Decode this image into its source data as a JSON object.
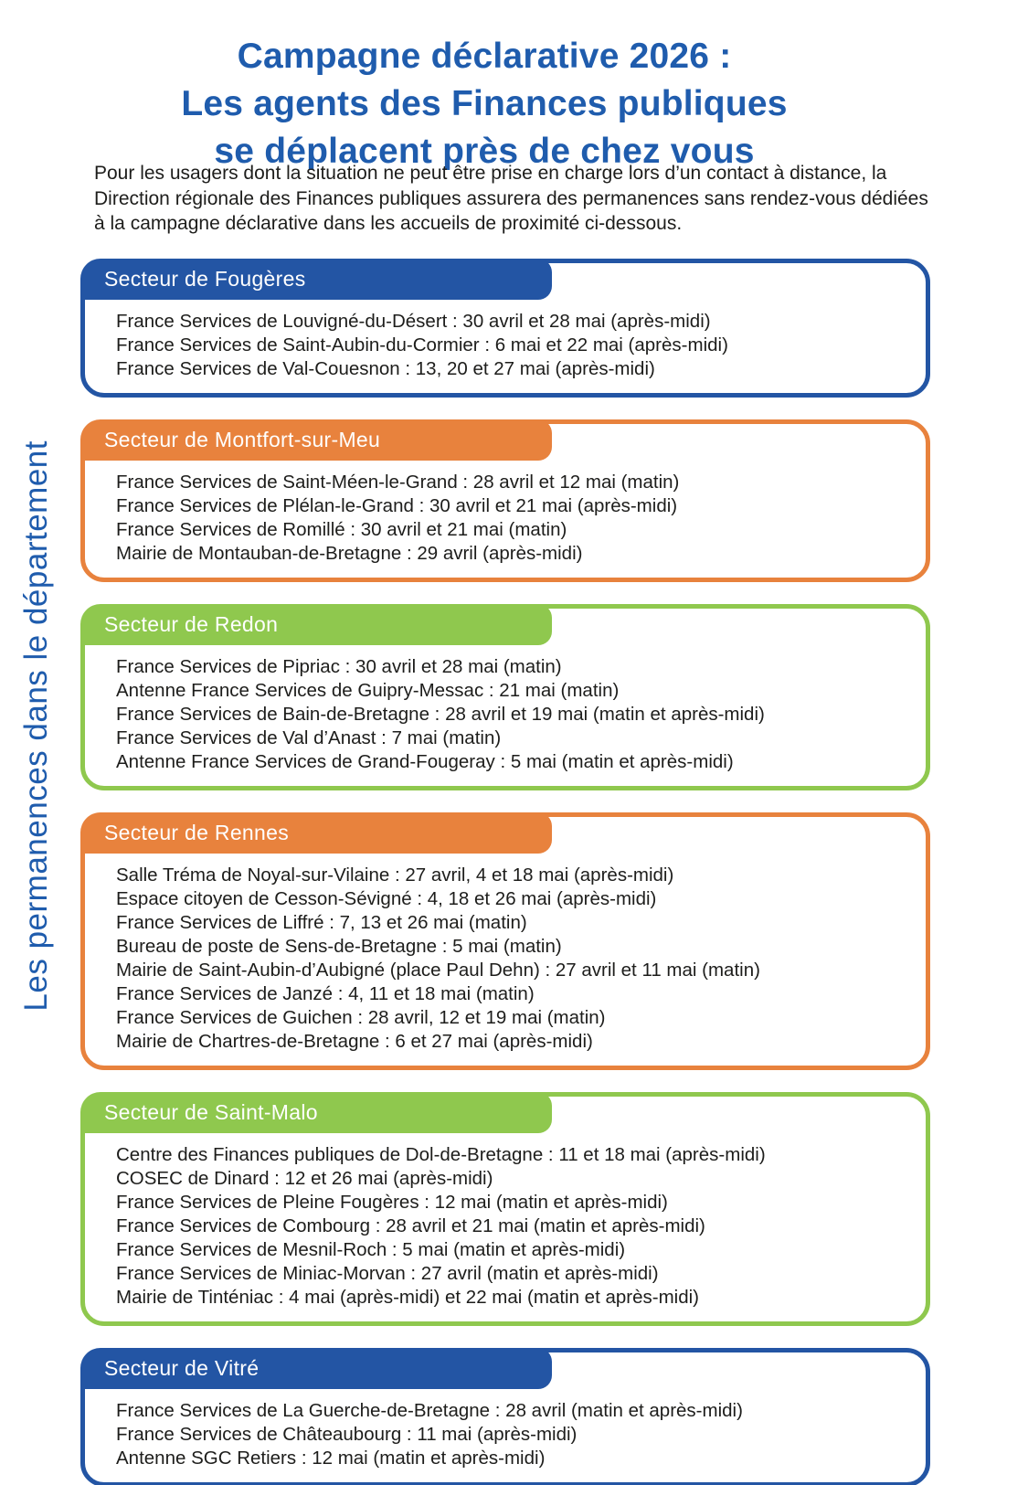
{
  "page": {
    "title_lines": [
      "Campagne déclarative 2026 :",
      "Les agents des Finances publiques",
      "se déplacent près de chez vous"
    ],
    "intro": "Pour les usagers dont la situation ne peut être prise en charge lors d’un contact à distance, la Direction régionale des Finances publiques assurera des permanences sans rendez-vous dédiées à la campagne déclarative dans les accueils de proximité ci-dessous.",
    "side_label": "Les permanences dans le département"
  },
  "colors": {
    "blue": "#2355a4",
    "orange": "#e8823d",
    "green": "#8fc84e",
    "heading_blue": "#1f5cad",
    "body_text": "#1d1d1b"
  },
  "sectors": [
    {
      "name": "Secteur de Fougères",
      "color": "blue",
      "entries": [
        "France Services de Louvigné-du-Désert : 30 avril et 28 mai (après-midi)",
        "France Services de Saint-Aubin-du-Cormier : 6 mai et 22 mai (après-midi)",
        "France Services de Val-Couesnon : 13, 20 et 27 mai (après-midi)"
      ]
    },
    {
      "name": "Secteur de Montfort-sur-Meu",
      "color": "orange",
      "entries": [
        "France Services de Saint-Méen-le-Grand : 28 avril et 12 mai (matin)",
        "France Services de Plélan-le-Grand : 30 avril et 21 mai (après-midi)",
        "France Services de Romillé : 30 avril et 21 mai (matin)",
        "Mairie de Montauban-de-Bretagne : 29 avril (après-midi)"
      ]
    },
    {
      "name": "Secteur de Redon",
      "color": "green",
      "entries": [
        "France Services de Pipriac : 30 avril et 28 mai (matin)",
        "Antenne France Services de Guipry-Messac : 21 mai (matin)",
        "France Services de Bain-de-Bretagne : 28 avril et 19 mai (matin et après-midi)",
        "France Services de Val d’Anast : 7 mai (matin)",
        "Antenne France Services de Grand-Fougeray : 5 mai (matin et après-midi)"
      ]
    },
    {
      "name": "Secteur de Rennes",
      "color": "orange",
      "entries": [
        "Salle Tréma de Noyal-sur-Vilaine : 27 avril, 4 et 18 mai (après-midi)",
        "Espace citoyen de Cesson-Sévigné : 4, 18 et 26 mai (après-midi)",
        "France Services de Liffré : 7, 13 et 26 mai (matin)",
        "Bureau de poste de Sens-de-Bretagne : 5 mai (matin)",
        "Mairie de Saint-Aubin-d’Aubigné (place Paul Dehn) : 27 avril et 11 mai (matin)",
        "France Services de Janzé : 4, 11 et 18 mai (matin)",
        "France Services de Guichen : 28 avril, 12 et 19 mai (matin)",
        "Mairie de Chartres-de-Bretagne : 6 et 27 mai (après-midi)"
      ]
    },
    {
      "name": "Secteur de Saint-Malo",
      "color": "green",
      "entries": [
        "Centre des Finances publiques de Dol-de-Bretagne : 11 et 18 mai (après-midi)",
        "COSEC de Dinard : 12 et 26 mai (après-midi)",
        "France Services de Pleine Fougères : 12 mai (matin et après-midi)",
        "France Services de Combourg : 28 avril et 21 mai (matin et après-midi)",
        "France Services de Mesnil-Roch : 5 mai (matin et après-midi)",
        "France Services de Miniac-Morvan : 27 avril (matin et après-midi)",
        "Mairie de Tinténiac : 4 mai (après-midi) et 22 mai (matin et après-midi)"
      ]
    },
    {
      "name": "Secteur de Vitré",
      "color": "blue",
      "entries": [
        "France Services de La Guerche-de-Bretagne : 28 avril (matin et après-midi)",
        "France Services de Châteaubourg : 11 mai (après-midi)",
        "Antenne SGC Retiers : 12 mai (matin et après-midi)"
      ]
    }
  ]
}
